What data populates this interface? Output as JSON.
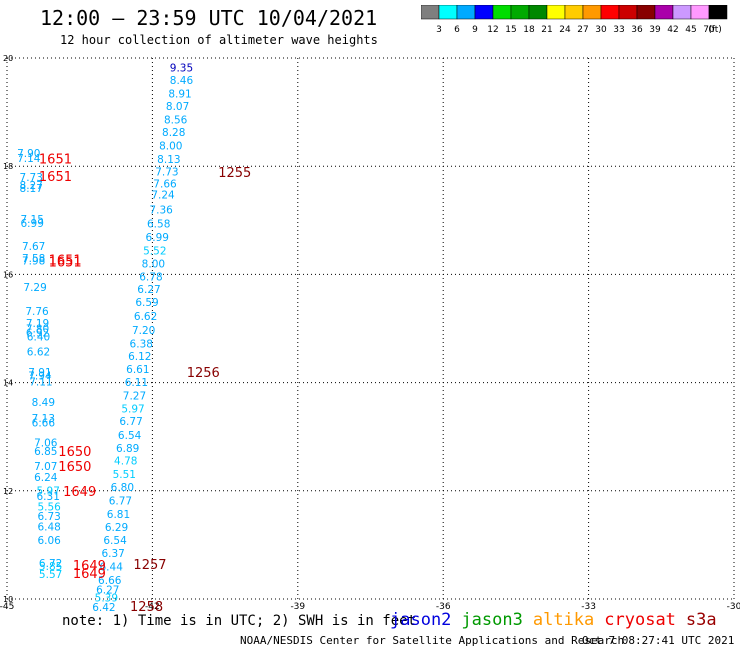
{
  "header": {
    "title": "12:00 – 23:59 UTC 10/04/2021",
    "subtitle": "12 hour collection of altimeter wave heights"
  },
  "colorbar": {
    "unit": "(ft)",
    "colors": [
      "#7f7f7f",
      "#00ffff",
      "#00aaff",
      "#0000ff",
      "#00dd00",
      "#00aa00",
      "#008800",
      "#ffff00",
      "#ffcc00",
      "#ff9900",
      "#ff0000",
      "#cc0000",
      "#880000",
      "#aa00aa",
      "#cc99ff",
      "#ff99ff",
      "#000000"
    ],
    "labels": [
      "3",
      "6",
      "9",
      "12",
      "15",
      "18",
      "21",
      "24",
      "27",
      "30",
      "33",
      "36",
      "39",
      "42",
      "45",
      "70"
    ]
  },
  "footer": {
    "note": "note: 1) Time is in UTC; 2) SWH is in feet",
    "missions": [
      {
        "name": "jason2",
        "color": "#0000dd"
      },
      {
        "name": "jason3",
        "color": "#009900"
      },
      {
        "name": "altika",
        "color": "#ff9900"
      },
      {
        "name": "cryosat",
        "color": "#ee0000"
      },
      {
        "name": "s3a",
        "color": "#990000"
      }
    ],
    "credit": "NOAA/NESDIS Center for Satellite Applications and Research",
    "generated": "Oct  7 08:27:41 UTC 2021"
  },
  "chart_data": {
    "type": "scatter",
    "title": "12:00 – 23:59 UTC 10/04/2021",
    "subtitle": "12 hour collection of altimeter wave heights",
    "xlim": [
      -45,
      -30
    ],
    "ylim": [
      10,
      20
    ],
    "xticks": [
      -45,
      -42,
      -39,
      -36,
      -33,
      -30
    ],
    "yticks": [
      10,
      12,
      14,
      16,
      18,
      20
    ],
    "grid": true,
    "swh_points": [
      {
        "lon": -41.4,
        "lat": 19.75,
        "v": "9.35",
        "c": "#0000bb"
      },
      {
        "lon": -41.4,
        "lat": 19.52,
        "v": "8.46",
        "c": "#00aaff"
      },
      {
        "lon": -41.43,
        "lat": 19.27,
        "v": "8.91",
        "c": "#00aaff"
      },
      {
        "lon": -41.48,
        "lat": 19.04,
        "v": "8.07",
        "c": "#00aaff"
      },
      {
        "lon": -41.52,
        "lat": 18.79,
        "v": "8.56",
        "c": "#00aaff"
      },
      {
        "lon": -41.56,
        "lat": 18.56,
        "v": "8.28",
        "c": "#00aaff"
      },
      {
        "lon": -41.62,
        "lat": 18.31,
        "v": "8.00",
        "c": "#00aaff"
      },
      {
        "lon": -41.66,
        "lat": 18.06,
        "v": "8.13",
        "c": "#00aaff"
      },
      {
        "lon": -41.7,
        "lat": 17.83,
        "v": "7.73",
        "c": "#00aaff"
      },
      {
        "lon": -41.74,
        "lat": 17.61,
        "v": "7.66",
        "c": "#00aaff"
      },
      {
        "lon": -41.78,
        "lat": 17.4,
        "v": "7.24",
        "c": "#00aaff"
      },
      {
        "lon": -41.82,
        "lat": 17.13,
        "v": "7.36",
        "c": "#00aaff"
      },
      {
        "lon": -41.87,
        "lat": 16.87,
        "v": "6.58",
        "c": "#00aaff"
      },
      {
        "lon": -41.9,
        "lat": 16.62,
        "v": "6.99",
        "c": "#00aaff"
      },
      {
        "lon": -41.95,
        "lat": 16.37,
        "v": "5.52",
        "c": "#00ccff"
      },
      {
        "lon": -41.98,
        "lat": 16.13,
        "v": "8.00",
        "c": "#00aaff"
      },
      {
        "lon": -42.03,
        "lat": 15.89,
        "v": "6.78",
        "c": "#00aaff"
      },
      {
        "lon": -42.07,
        "lat": 15.66,
        "v": "6.27",
        "c": "#00aaff"
      },
      {
        "lon": -42.11,
        "lat": 15.42,
        "v": "6.59",
        "c": "#00aaff"
      },
      {
        "lon": -42.14,
        "lat": 15.16,
        "v": "6.62",
        "c": "#00aaff"
      },
      {
        "lon": -42.18,
        "lat": 14.9,
        "v": "7.20",
        "c": "#00aaff"
      },
      {
        "lon": -42.23,
        "lat": 14.65,
        "v": "6.38",
        "c": "#00aaff"
      },
      {
        "lon": -42.26,
        "lat": 14.42,
        "v": "6.12",
        "c": "#00aaff"
      },
      {
        "lon": -42.3,
        "lat": 14.18,
        "v": "6.61",
        "c": "#00aaff"
      },
      {
        "lon": -42.33,
        "lat": 13.94,
        "v": "6.11",
        "c": "#00aaff"
      },
      {
        "lon": -42.37,
        "lat": 13.69,
        "v": "7.27",
        "c": "#00aaff"
      },
      {
        "lon": -42.4,
        "lat": 13.45,
        "v": "5.97",
        "c": "#00ccff"
      },
      {
        "lon": -42.44,
        "lat": 13.22,
        "v": "6.77",
        "c": "#00aaff"
      },
      {
        "lon": -42.47,
        "lat": 12.96,
        "v": "6.54",
        "c": "#00aaff"
      },
      {
        "lon": -42.51,
        "lat": 12.72,
        "v": "6.89",
        "c": "#00aaff"
      },
      {
        "lon": -42.55,
        "lat": 12.49,
        "v": "4.78",
        "c": "#00ccff"
      },
      {
        "lon": -42.58,
        "lat": 12.24,
        "v": "5.51",
        "c": "#00ccff"
      },
      {
        "lon": -42.62,
        "lat": 12.0,
        "v": "6.80",
        "c": "#00aaff"
      },
      {
        "lon": -42.66,
        "lat": 11.75,
        "v": "6.77",
        "c": "#00aaff"
      },
      {
        "lon": -42.7,
        "lat": 11.5,
        "v": "6.81",
        "c": "#00aaff"
      },
      {
        "lon": -42.74,
        "lat": 11.26,
        "v": "6.29",
        "c": "#00aaff"
      },
      {
        "lon": -42.77,
        "lat": 11.02,
        "v": "6.54",
        "c": "#00aaff"
      },
      {
        "lon": -42.81,
        "lat": 10.78,
        "v": "6.37",
        "c": "#00aaff"
      },
      {
        "lon": -42.85,
        "lat": 10.53,
        "v": "6.44",
        "c": "#00aaff"
      },
      {
        "lon": -42.88,
        "lat": 10.28,
        "v": "6.66",
        "c": "#00aaff"
      },
      {
        "lon": -42.92,
        "lat": 10.1,
        "v": "6.27",
        "c": "#00aaff"
      },
      {
        "lon": -42.95,
        "lat": 9.95,
        "v": "5.39",
        "c": "#00ccff"
      },
      {
        "lon": -43.0,
        "lat": 9.78,
        "v": "6.42",
        "c": "#00aaff"
      },
      {
        "lon": -44.55,
        "lat": 18.17,
        "v": "7.90",
        "c": "#00aaff"
      },
      {
        "lon": -44.55,
        "lat": 18.08,
        "v": "7.14",
        "c": "#00aaff"
      },
      {
        "lon": -44.5,
        "lat": 17.73,
        "v": "7.73",
        "c": "#00aaff"
      },
      {
        "lon": -44.5,
        "lat": 17.58,
        "v": "8.27",
        "c": "#00aaff"
      },
      {
        "lon": -44.5,
        "lat": 17.52,
        "v": "8.17",
        "c": "#00aaff"
      },
      {
        "lon": -44.48,
        "lat": 16.95,
        "v": "7.15",
        "c": "#00aaff"
      },
      {
        "lon": -44.48,
        "lat": 16.88,
        "v": "6.99",
        "c": "#00aaff"
      },
      {
        "lon": -44.45,
        "lat": 16.45,
        "v": "7.67",
        "c": "#00aaff"
      },
      {
        "lon": -44.45,
        "lat": 16.23,
        "v": "7.58",
        "c": "#00aaff"
      },
      {
        "lon": -44.45,
        "lat": 16.18,
        "v": "7.98",
        "c": "#00aaff"
      },
      {
        "lon": -44.42,
        "lat": 15.69,
        "v": "7.29",
        "c": "#00aaff"
      },
      {
        "lon": -44.38,
        "lat": 15.25,
        "v": "7.76",
        "c": "#00aaff"
      },
      {
        "lon": -44.37,
        "lat": 15.03,
        "v": "7.19",
        "c": "#00aaff"
      },
      {
        "lon": -44.37,
        "lat": 14.93,
        "v": "7.80",
        "c": "#00aaff"
      },
      {
        "lon": -44.37,
        "lat": 14.85,
        "v": "6.92",
        "c": "#00aaff"
      },
      {
        "lon": -44.35,
        "lat": 14.78,
        "v": "6.40",
        "c": "#00aaff"
      },
      {
        "lon": -44.35,
        "lat": 14.5,
        "v": "6.62",
        "c": "#00aaff"
      },
      {
        "lon": -44.32,
        "lat": 14.12,
        "v": "7.91",
        "c": "#00aaff"
      },
      {
        "lon": -44.32,
        "lat": 14.06,
        "v": "7.94",
        "c": "#00aaff"
      },
      {
        "lon": -44.3,
        "lat": 13.95,
        "v": "7.11",
        "c": "#00aaff"
      },
      {
        "lon": -44.25,
        "lat": 13.57,
        "v": "8.49",
        "c": "#00aaff"
      },
      {
        "lon": -44.25,
        "lat": 13.27,
        "v": "7.13",
        "c": "#00aaff"
      },
      {
        "lon": -44.25,
        "lat": 13.19,
        "v": "6.66",
        "c": "#00aaff"
      },
      {
        "lon": -44.2,
        "lat": 12.82,
        "v": "7.06",
        "c": "#00aaff"
      },
      {
        "lon": -44.2,
        "lat": 12.66,
        "v": "6.85",
        "c": "#00aaff"
      },
      {
        "lon": -44.2,
        "lat": 12.38,
        "v": "7.07",
        "c": "#00aaff"
      },
      {
        "lon": -44.2,
        "lat": 12.18,
        "v": "6.24",
        "c": "#00aaff"
      },
      {
        "lon": -44.15,
        "lat": 11.93,
        "v": "5.97",
        "c": "#00ccff"
      },
      {
        "lon": -44.15,
        "lat": 11.83,
        "v": "6.31",
        "c": "#00aaff"
      },
      {
        "lon": -44.13,
        "lat": 11.64,
        "v": "5.56",
        "c": "#00ccff"
      },
      {
        "lon": -44.13,
        "lat": 11.46,
        "v": "6.73",
        "c": "#00aaff"
      },
      {
        "lon": -44.13,
        "lat": 11.27,
        "v": "6.48",
        "c": "#00aaff"
      },
      {
        "lon": -44.13,
        "lat": 11.02,
        "v": "6.06",
        "c": "#00aaff"
      },
      {
        "lon": -44.1,
        "lat": 10.59,
        "v": "6.72",
        "c": "#00aaff"
      },
      {
        "lon": -44.1,
        "lat": 10.54,
        "v": "5.85",
        "c": "#00ccff"
      },
      {
        "lon": -44.1,
        "lat": 10.39,
        "v": "5.57",
        "c": "#00ccff"
      }
    ],
    "pass_times": [
      {
        "lon": -44.0,
        "lat": 18.05,
        "t": "1651",
        "c": "#ee0000"
      },
      {
        "lon": -44.0,
        "lat": 17.73,
        "t": "1651",
        "c": "#ee0000"
      },
      {
        "lon": -43.8,
        "lat": 16.18,
        "t": "1651",
        "c": "#ee0000"
      },
      {
        "lon": -43.8,
        "lat": 16.15,
        "t": "1651",
        "c": "#ee0000"
      },
      {
        "lon": -43.6,
        "lat": 12.64,
        "t": "1650",
        "c": "#ee0000"
      },
      {
        "lon": -43.6,
        "lat": 12.37,
        "t": "1650",
        "c": "#ee0000"
      },
      {
        "lon": -43.5,
        "lat": 11.9,
        "t": "1649",
        "c": "#ee0000"
      },
      {
        "lon": -43.3,
        "lat": 10.54,
        "t": "1649",
        "c": "#ee0000"
      },
      {
        "lon": -43.3,
        "lat": 10.39,
        "t": "1649",
        "c": "#ee0000"
      },
      {
        "lon": -40.3,
        "lat": 17.8,
        "t": "1255",
        "c": "#880000"
      },
      {
        "lon": -40.95,
        "lat": 14.1,
        "t": "1256",
        "c": "#880000"
      },
      {
        "lon": -42.05,
        "lat": 10.55,
        "t": "1257",
        "c": "#880000"
      },
      {
        "lon": -42.12,
        "lat": 9.78,
        "t": "1258",
        "c": "#880000"
      }
    ]
  }
}
